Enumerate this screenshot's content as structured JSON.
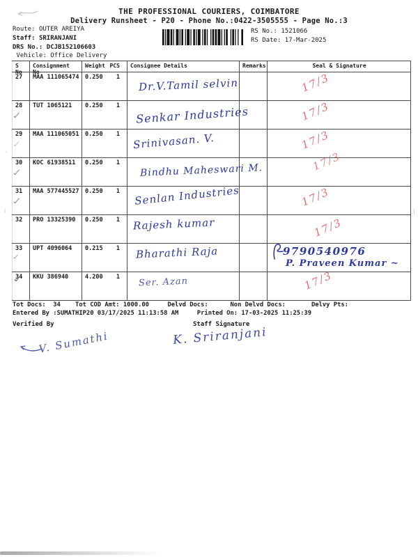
{
  "header": {
    "company": "THE PROFESSIONAL COURIERS, COIMBATORE",
    "runsheet_line": "Delivery Runsheet - P20 - Phone No.:0422-3505555 - Page No.:3",
    "route_label": "Route:",
    "route_value": "OUTER AREIYA",
    "staff_label": "Staff:",
    "staff_value": "SRIRANJANI",
    "drs_label": "DRS No.:",
    "drs_value": "DCJB152106603",
    "vehicle_label": "Vehicle:",
    "vehicle_value": "Office Delivery",
    "rs_no_label": "RS No.:",
    "rs_no_value": "1521066",
    "rs_date_label": "RS Date:",
    "rs_date_value": "17-Mar-2025"
  },
  "table": {
    "headers": {
      "sno": "S No",
      "consignment": "Consignment No",
      "weight": "Weight",
      "pcs": "PCS",
      "consignee": "Consignee Details",
      "remarks": "Remarks",
      "seal": "Seal & Signature"
    },
    "rows": [
      {
        "sno": "27",
        "consignment": "MAA 111065474",
        "weight": "0.250",
        "pcs": "1",
        "consignee": "Dr.V.Tamil selvin",
        "remarks": "",
        "seal1": "17/3",
        "seal2": "",
        "seal_ink": "red",
        "checked": false
      },
      {
        "sno": "28",
        "consignment": "TUT 1065121",
        "weight": "0.250",
        "pcs": "1",
        "consignee": "Senkar Industries",
        "remarks": "",
        "seal1": "17/3",
        "seal2": "",
        "seal_ink": "red",
        "checked": true
      },
      {
        "sno": "29",
        "consignment": "MAA 111065051",
        "weight": "0.250",
        "pcs": "1",
        "consignee": "Srinivasan. V.",
        "remarks": "",
        "seal1": "17/3",
        "seal2": "",
        "seal_ink": "red",
        "checked": true
      },
      {
        "sno": "30",
        "consignment": "KOC 61938511",
        "weight": "0.250",
        "pcs": "1",
        "consignee": "Bindhu Maheswari M.",
        "remarks": "",
        "seal1": "17/3",
        "seal2": "",
        "seal_ink": "red",
        "checked": true
      },
      {
        "sno": "31",
        "consignment": "MAA 577445527",
        "weight": "0.250",
        "pcs": "1",
        "consignee": "Senlan Industries",
        "remarks": "",
        "seal1": "17/3",
        "seal2": "",
        "seal_ink": "red",
        "checked": true
      },
      {
        "sno": "32",
        "consignment": "PRO 13325390",
        "weight": "0.250",
        "pcs": "1",
        "consignee": "Rajesh kumar",
        "remarks": "",
        "seal1": "17/3",
        "seal2": "",
        "seal_ink": "red",
        "checked": false
      },
      {
        "sno": "33",
        "consignment": "UPT 4096064",
        "weight": "0.215",
        "pcs": "1",
        "consignee": "Bharathi Raja",
        "remarks": "",
        "seal1": "9790540976",
        "seal2": "P. Praveen Kumar ~",
        "seal_ink": "blue",
        "checked": true
      },
      {
        "sno": "34",
        "consignment": "KKU 386940",
        "weight": "4.200",
        "pcs": "1",
        "consignee": "Ser. Azan",
        "remarks": "",
        "seal1": "17/3",
        "seal2": "",
        "seal_ink": "red",
        "checked": true
      }
    ]
  },
  "footer": {
    "totals_line": "Tot Docs:  34    Tot COD Amt: 1000.00     Delvd Docs:      Non Delvd Docs:       Delvy Pts:",
    "entered_line": "Entered By :SUMATHIP20 03/17/2025 11:13:58 AM     Printed On: 17-03-2025 11:25:39",
    "verified_label": "Verified By",
    "staff_sig_label": "Staff Signature",
    "verified_signature": "V. Sumathi",
    "staff_signature": "K. Sriranjani"
  },
  "colors": {
    "ink_blue": "#2c3a9d",
    "ink_red": "#e76f6f",
    "print_black": "#1c1c1c",
    "pencil_gray": "#96a0ab"
  }
}
